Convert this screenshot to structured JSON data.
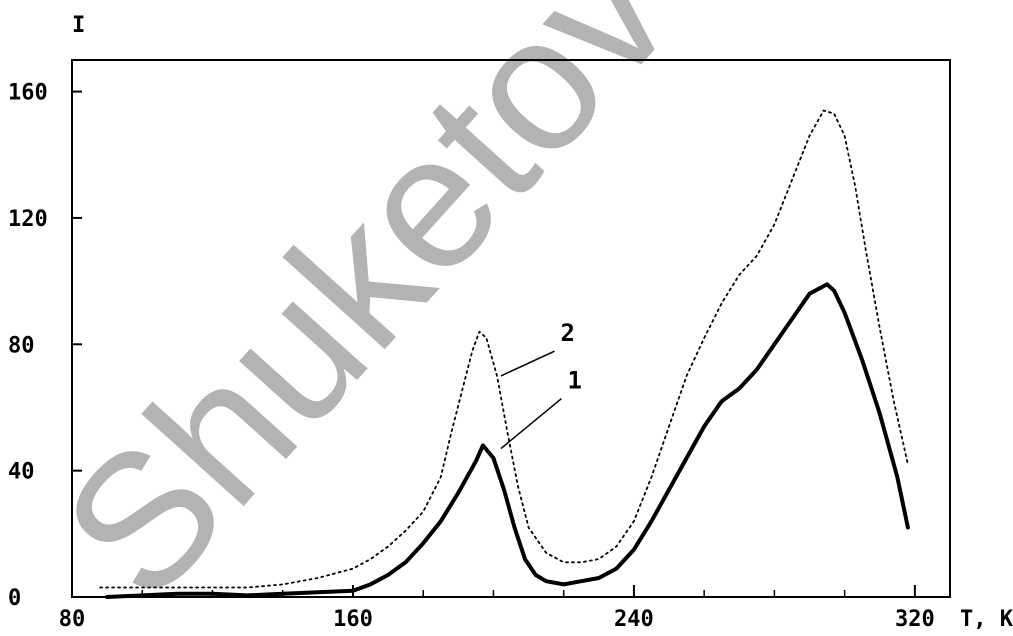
{
  "chart_data": {
    "type": "line",
    "xlabel": "T, K",
    "ylabel": "I",
    "xlim": [
      80,
      330
    ],
    "ylim": [
      0,
      170
    ],
    "x_ticks": [
      80,
      160,
      240,
      320
    ],
    "x_minor_ticks": [
      100,
      120,
      140,
      180,
      200,
      220,
      260,
      280,
      300
    ],
    "y_ticks": [
      0,
      40,
      80,
      120,
      160
    ],
    "grid": false,
    "series": [
      {
        "name": "1",
        "style": "solid-thick",
        "color": "#000000",
        "x": [
          90,
          100,
          110,
          120,
          130,
          140,
          150,
          160,
          165,
          170,
          175,
          180,
          185,
          190,
          195,
          197,
          200,
          203,
          206,
          209,
          212,
          215,
          220,
          225,
          230,
          235,
          240,
          245,
          250,
          255,
          260,
          265,
          270,
          275,
          280,
          285,
          290,
          295,
          297,
          300,
          305,
          310,
          315,
          318
        ],
        "y": [
          0,
          0.5,
          1,
          1,
          0.5,
          1,
          1.5,
          2,
          4,
          7,
          11,
          17,
          24,
          33,
          43,
          48,
          44,
          34,
          22,
          12,
          7,
          5,
          4,
          5,
          6,
          9,
          15,
          24,
          34,
          44,
          54,
          62,
          66,
          72,
          80,
          88,
          96,
          99,
          97,
          90,
          75,
          58,
          38,
          22
        ]
      },
      {
        "name": "2",
        "style": "dotted",
        "color": "#000000",
        "x": [
          88,
          100,
          110,
          120,
          130,
          140,
          150,
          160,
          165,
          170,
          175,
          180,
          185,
          188,
          191,
          194,
          196,
          198,
          201,
          204,
          207,
          210,
          215,
          220,
          225,
          230,
          235,
          240,
          245,
          250,
          255,
          260,
          265,
          270,
          275,
          280,
          285,
          290,
          294,
          297,
          300,
          303,
          306,
          310,
          314,
          318
        ],
        "y": [
          3,
          3,
          3,
          3,
          3,
          4,
          6,
          9,
          12,
          16,
          21,
          27,
          38,
          52,
          65,
          78,
          84,
          82,
          70,
          52,
          35,
          22,
          14,
          11,
          11,
          12,
          16,
          24,
          38,
          54,
          70,
          82,
          93,
          102,
          108,
          118,
          132,
          146,
          154,
          153,
          146,
          130,
          110,
          85,
          62,
          42
        ]
      }
    ],
    "annotations": [
      {
        "text": "2",
        "x": 202,
        "y": 81
      },
      {
        "text": "1",
        "x": 204,
        "y": 66
      }
    ],
    "watermark": "Shuketov Uni"
  }
}
